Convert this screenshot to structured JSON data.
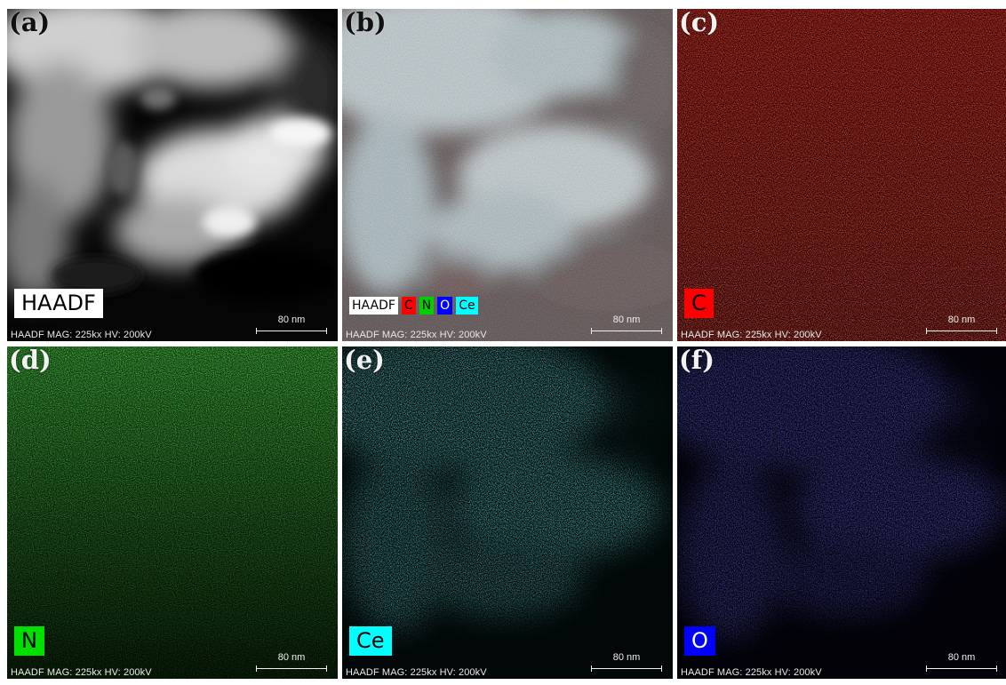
{
  "figure": {
    "panels": [
      {
        "letter": "(a)",
        "label": "HAADF",
        "label_bg": "#ffffff",
        "label_fg": "#000000",
        "channel": "haadf",
        "footer": "HAADF  MAG: 225kx  HV: 200kV",
        "scale": "80 nm"
      },
      {
        "letter": "(b)",
        "label": "",
        "channel": "overlay",
        "footer": "HAADF  MAG: 225kx  HV: 200kV",
        "scale": "80 nm",
        "legend": [
          {
            "text": "HAADF",
            "bg": "#ffffff",
            "fg": "#000000"
          },
          {
            "text": "C",
            "bg": "#ff0000",
            "fg": "#000000"
          },
          {
            "text": "N",
            "bg": "#00d000",
            "fg": "#000000"
          },
          {
            "text": "O",
            "bg": "#0000ff",
            "fg": "#ffffff"
          },
          {
            "text": "Ce",
            "bg": "#00ffff",
            "fg": "#000000"
          }
        ]
      },
      {
        "letter": "(c)",
        "label": "C",
        "label_bg": "#ff0000",
        "label_fg": "#000000",
        "channel": "C",
        "color": "#ff2a20",
        "footer": "HAADF  MAG: 225kx  HV: 200kV",
        "scale": "80 nm"
      },
      {
        "letter": "(d)",
        "label": "N",
        "label_bg": "#00e000",
        "label_fg": "#000000",
        "channel": "N",
        "color": "#22cc22",
        "footer": "HAADF  MAG: 225kx  HV: 200kV",
        "scale": "80 nm"
      },
      {
        "letter": "(e)",
        "label": "Ce",
        "label_bg": "#00ffff",
        "label_fg": "#000000",
        "channel": "Ce",
        "color": "#30e8e8",
        "footer": "HAADF  MAG: 225kx  HV: 200kV",
        "scale": "80 nm"
      },
      {
        "letter": "(f)",
        "label": "O",
        "label_bg": "#0000ff",
        "label_fg": "#ffffff",
        "channel": "O",
        "color": "#2a2aff",
        "footer": "HAADF  MAG: 225kx  HV: 200kV",
        "scale": "80 nm"
      }
    ]
  }
}
